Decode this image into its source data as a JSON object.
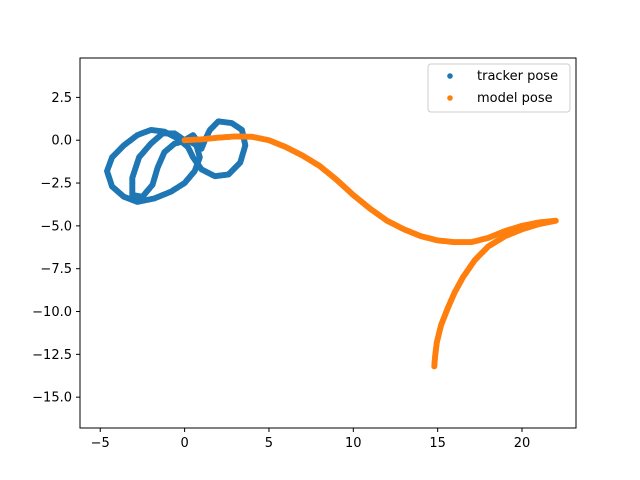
{
  "chart_data": {
    "type": "scatter",
    "xlim": [
      -6.2,
      23.2
    ],
    "ylim": [
      -16.8,
      4.8
    ],
    "x_ticks": [
      -5,
      0,
      5,
      10,
      15,
      20
    ],
    "y_ticks": [
      2.5,
      0.0,
      -2.5,
      -5.0,
      -7.5,
      -10.0,
      -12.5,
      -15.0
    ],
    "x_tick_labels": [
      "−5",
      "0",
      "5",
      "10",
      "15",
      "20"
    ],
    "y_tick_labels": [
      "2.5",
      "0.0",
      "−2.5",
      "−5.0",
      "−7.5",
      "−10.0",
      "−12.5",
      "−15.0"
    ],
    "grid": false,
    "legend_position": "upper-right",
    "series": [
      {
        "name": "tracker pose",
        "color": "#1f77b4",
        "points": [
          [
            0,
            0
          ],
          [
            0.5,
            0.3
          ],
          [
            0.8,
            -0.1
          ],
          [
            1.0,
            -0.5
          ],
          [
            1.2,
            0.0
          ],
          [
            1.5,
            0.6
          ],
          [
            2.0,
            1.1
          ],
          [
            2.8,
            1.0
          ],
          [
            3.4,
            0.6
          ],
          [
            3.6,
            -0.3
          ],
          [
            3.3,
            -1.3
          ],
          [
            2.6,
            -2.0
          ],
          [
            1.8,
            -2.1
          ],
          [
            1.0,
            -1.7
          ],
          [
            0.5,
            -1.0
          ],
          [
            0.2,
            -0.4
          ],
          [
            -0.4,
            0.1
          ],
          [
            -1.2,
            0.5
          ],
          [
            -2.0,
            0.6
          ],
          [
            -2.8,
            0.3
          ],
          [
            -3.6,
            -0.3
          ],
          [
            -4.3,
            -1.0
          ],
          [
            -4.6,
            -1.8
          ],
          [
            -4.3,
            -2.7
          ],
          [
            -3.6,
            -3.3
          ],
          [
            -2.8,
            -3.6
          ],
          [
            -1.8,
            -3.4
          ],
          [
            -0.8,
            -3.0
          ],
          [
            0.0,
            -2.5
          ],
          [
            0.6,
            -1.8
          ],
          [
            0.9,
            -1.0
          ],
          [
            0.7,
            -0.3
          ],
          [
            0.2,
            0.0
          ],
          [
            -0.6,
            -0.2
          ],
          [
            -1.2,
            -0.7
          ],
          [
            -1.6,
            -1.6
          ],
          [
            -1.9,
            -2.6
          ],
          [
            -2.5,
            -3.3
          ],
          [
            -3.1,
            -3.2
          ],
          [
            -3.1,
            -2.2
          ],
          [
            -2.7,
            -1.0
          ],
          [
            -2.0,
            -0.2
          ],
          [
            -1.3,
            0.4
          ],
          [
            -0.6,
            0.4
          ],
          [
            0,
            0
          ]
        ]
      },
      {
        "name": "model pose",
        "color": "#ff7f0e",
        "points": [
          [
            0,
            0
          ],
          [
            1,
            0.05
          ],
          [
            2,
            0.15
          ],
          [
            3,
            0.22
          ],
          [
            4,
            0.2
          ],
          [
            5,
            0.0
          ],
          [
            6,
            -0.4
          ],
          [
            7,
            -0.9
          ],
          [
            8,
            -1.5
          ],
          [
            9,
            -2.3
          ],
          [
            10,
            -3.2
          ],
          [
            11,
            -4.0
          ],
          [
            12,
            -4.7
          ],
          [
            13,
            -5.2
          ],
          [
            14,
            -5.6
          ],
          [
            15,
            -5.85
          ],
          [
            16,
            -5.95
          ],
          [
            17,
            -5.95
          ],
          [
            18,
            -5.7
          ],
          [
            19,
            -5.3
          ],
          [
            20,
            -5.0
          ],
          [
            21,
            -4.8
          ],
          [
            22,
            -4.7
          ],
          [
            21,
            -4.9
          ],
          [
            20,
            -5.2
          ],
          [
            19,
            -5.6
          ],
          [
            18,
            -6.2
          ],
          [
            17.2,
            -7.0
          ],
          [
            16.5,
            -8.0
          ],
          [
            16,
            -8.9
          ],
          [
            15.6,
            -9.8
          ],
          [
            15.2,
            -10.8
          ],
          [
            14.95,
            -11.8
          ],
          [
            14.85,
            -12.6
          ],
          [
            14.8,
            -13.2
          ]
        ]
      }
    ]
  },
  "legend": {
    "items": [
      {
        "label": "tracker pose",
        "color": "#1f77b4"
      },
      {
        "label": "model pose",
        "color": "#ff7f0e"
      }
    ]
  }
}
